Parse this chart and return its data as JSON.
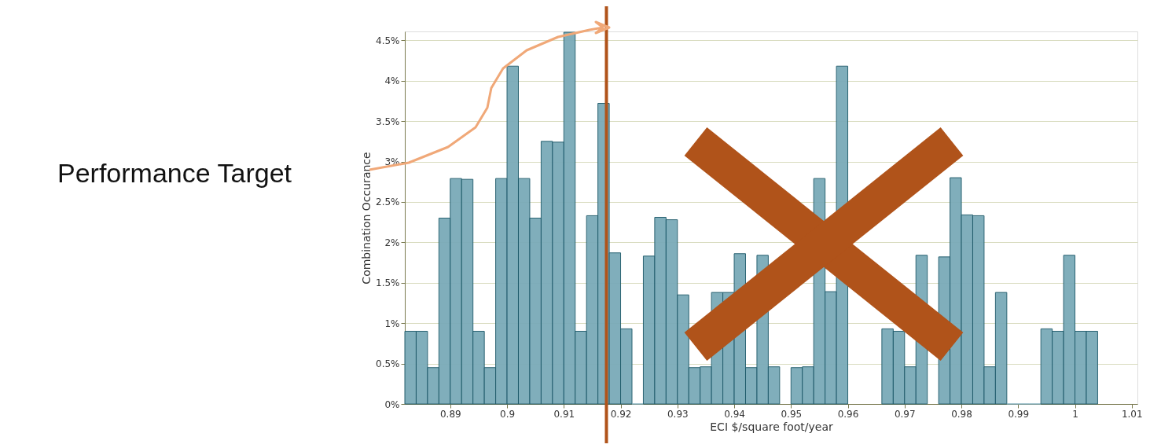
{
  "chart_data": {
    "type": "histogram",
    "xlabel": "ECI $/square foot/year",
    "ylabel": "Combination Occurance",
    "color": "#7aaab8",
    "bins": [
      0.882,
      0.884,
      0.886,
      0.888,
      0.89,
      0.892,
      0.894,
      0.896,
      0.898,
      0.9,
      0.902,
      0.904,
      0.906,
      0.908,
      0.91,
      0.912,
      0.914,
      0.916,
      0.918,
      0.92,
      0.922,
      0.924,
      0.926,
      0.928,
      0.93,
      0.932,
      0.934,
      0.936,
      0.938,
      0.94,
      0.942,
      0.944,
      0.946,
      0.948,
      0.95,
      0.952,
      0.954,
      0.956,
      0.958,
      0.96,
      0.962,
      0.964,
      0.966,
      0.968,
      0.97,
      0.972,
      0.974,
      0.976,
      0.978,
      0.98,
      0.982,
      0.984,
      0.986,
      0.988,
      0.99,
      0.992,
      0.994,
      0.996,
      0.998,
      1.0,
      1.002,
      1.004
    ],
    "values": [
      0.9,
      0.9,
      0.45,
      2.3,
      2.79,
      2.78,
      0.9,
      0.45,
      2.79,
      4.18,
      2.79,
      2.3,
      3.25,
      3.24,
      4.6,
      0.9,
      2.33,
      3.72,
      1.87,
      0.93,
      0,
      1.83,
      2.31,
      2.28,
      1.35,
      0.45,
      0.46,
      1.38,
      1.38,
      1.86,
      0.45,
      1.84,
      0.46,
      null,
      0.45,
      0.46,
      2.79,
      1.39,
      4.18,
      null,
      null,
      null,
      0.93,
      0.9,
      0.46,
      1.84,
      null,
      1.82,
      2.8,
      2.34,
      2.33,
      0.46,
      1.38,
      0,
      0,
      0,
      0.93,
      0.9,
      1.84,
      0.9,
      0.9
    ],
    "xlim": [
      0.882,
      1.011
    ],
    "ylim": [
      0,
      4.61
    ],
    "xticks": [
      0.89,
      0.9,
      0.91,
      0.92,
      0.93,
      0.94,
      0.95,
      0.96,
      0.97,
      0.98,
      0.99,
      1,
      1.01
    ],
    "yticks": [
      {
        "value": 0,
        "label": "0%"
      },
      {
        "value": 0.5,
        "label": "0.5%"
      },
      {
        "value": 1,
        "label": "1%"
      },
      {
        "value": 1.5,
        "label": "1.5%"
      },
      {
        "value": 2,
        "label": "2%"
      },
      {
        "value": 2.5,
        "label": "2.5%"
      },
      {
        "value": 3,
        "label": "3%"
      },
      {
        "value": 3.5,
        "label": "3.5%"
      },
      {
        "value": 4,
        "label": "4%"
      },
      {
        "value": 4.5,
        "label": "4.5%"
      }
    ],
    "grid": "y",
    "annotations": [
      "Performance Target"
    ],
    "ref_lines": [
      {
        "axis": "x",
        "value": 0.9175,
        "color": "#b0531a"
      }
    ]
  }
}
